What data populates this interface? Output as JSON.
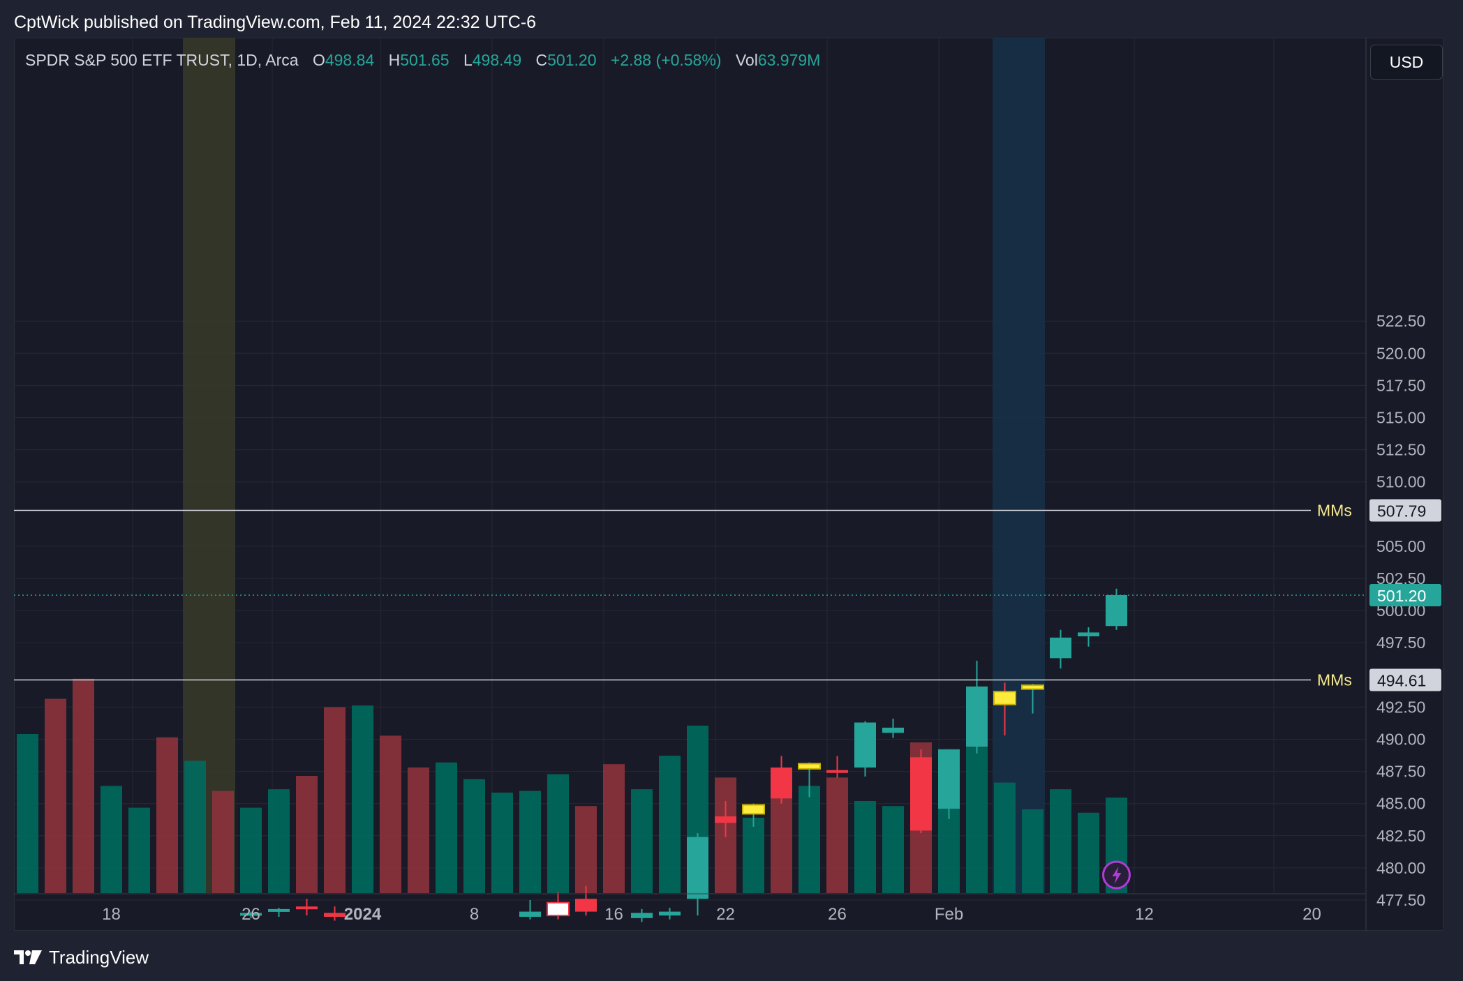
{
  "header": {
    "published_text": "CptWick published on TradingView.com, Feb 11, 2024 22:32 UTC-6"
  },
  "legend": {
    "symbol": "SPDR S&P 500 ETF TRUST, 1D, Arca",
    "open_label": "O",
    "open": "498.84",
    "high_label": "H",
    "high": "501.65",
    "low_label": "L",
    "low": "498.49",
    "close_label": "C",
    "close": "501.20",
    "change": "+2.88 (+0.58%)",
    "vol_label": "Vol",
    "volume": "63.979M"
  },
  "currency": "USD",
  "footer": {
    "brand": "TradingView"
  },
  "colors": {
    "up": "#26a69a",
    "down": "#f23645",
    "yellow": "#ffeb3b",
    "white_body": "#ffffff",
    "grid": "#262a36",
    "vol_up": "#00695c",
    "vol_down": "#8b323b",
    "highlight_olive": "#3a3a2a",
    "highlight_blue": "#16304a",
    "mm_line": "#d1d4dc",
    "mm_text": "#f7e98e"
  },
  "icons": {
    "lightning": "lightning-icon",
    "brand": "tradingview-logo-icon"
  },
  "chart_data": {
    "type": "candlestick",
    "y_axis_ticks": [
      "522.50",
      "520.00",
      "517.50",
      "515.00",
      "512.50",
      "510.00",
      "505.00",
      "502.50",
      "500.00",
      "497.50",
      "492.50",
      "490.00",
      "487.50",
      "485.00",
      "482.50",
      "480.00",
      "477.50"
    ],
    "x_axis_labels": [
      {
        "label": "18",
        "date": "2023-12-18",
        "bold": false
      },
      {
        "label": "26",
        "date": "2023-12-26",
        "bold": false
      },
      {
        "label": "2024",
        "date": "2024-01-02",
        "bold": true
      },
      {
        "label": "8",
        "date": "2024-01-08",
        "bold": false
      },
      {
        "label": "16",
        "date": "2024-01-16",
        "bold": false
      },
      {
        "label": "22",
        "date": "2024-01-22",
        "bold": false
      },
      {
        "label": "26",
        "date": "2024-01-26",
        "bold": false
      },
      {
        "label": "Feb",
        "date": "2024-02-01",
        "bold": false
      },
      {
        "label": "12",
        "date": "2024-02-12",
        "bold": false
      },
      {
        "label": "20",
        "date": "2024-02-20",
        "bold": false
      }
    ],
    "horizontal_lines": [
      {
        "name": "MMs",
        "value": 507.79,
        "label": "507.79"
      },
      {
        "name": "MMs",
        "value": 494.61,
        "label": "494.61"
      }
    ],
    "last_price": {
      "value": 501.2,
      "label": "501.20"
    },
    "highlight_bands": [
      {
        "from": "2023-12-21",
        "to": "2023-12-22",
        "color": "olive"
      },
      {
        "from": "2024-02-05",
        "to": "2024-02-06",
        "color": "blue"
      }
    ],
    "candles": [
      {
        "date": "2023-12-13",
        "o": null,
        "h": null,
        "l": null,
        "c": null,
        "vol": 95,
        "dir": "up"
      },
      {
        "date": "2023-12-14",
        "o": null,
        "h": null,
        "l": null,
        "c": null,
        "vol": 116,
        "dir": "down"
      },
      {
        "date": "2023-12-15",
        "o": null,
        "h": null,
        "l": null,
        "c": null,
        "vol": 128,
        "dir": "down"
      },
      {
        "date": "2023-12-18",
        "o": null,
        "h": null,
        "l": null,
        "c": null,
        "vol": 64,
        "dir": "up"
      },
      {
        "date": "2023-12-19",
        "o": null,
        "h": null,
        "l": null,
        "c": null,
        "vol": 51,
        "dir": "up"
      },
      {
        "date": "2023-12-20",
        "o": null,
        "h": null,
        "l": null,
        "c": null,
        "vol": 93,
        "dir": "down"
      },
      {
        "date": "2023-12-21",
        "o": null,
        "h": null,
        "l": null,
        "c": null,
        "vol": 79,
        "dir": "up"
      },
      {
        "date": "2023-12-22",
        "o": null,
        "h": null,
        "l": null,
        "c": null,
        "vol": 61,
        "dir": "down"
      },
      {
        "date": "2023-12-26",
        "o": 476.3,
        "h": 476.6,
        "l": 476.1,
        "c": 476.5,
        "vol": 51,
        "dir": "up"
      },
      {
        "date": "2023-12-27",
        "o": 476.6,
        "h": 476.9,
        "l": 476.2,
        "c": 476.8,
        "vol": 62,
        "dir": "up"
      },
      {
        "date": "2023-12-28",
        "o": 477.0,
        "h": 477.6,
        "l": 476.3,
        "c": 476.8,
        "vol": 70,
        "dir": "down"
      },
      {
        "date": "2023-12-29",
        "o": 476.5,
        "h": 477.0,
        "l": 475.9,
        "c": 476.2,
        "vol": 111,
        "dir": "down"
      },
      {
        "date": "2024-01-02",
        "o": null,
        "h": null,
        "l": null,
        "c": null,
        "vol": 112,
        "dir": "up"
      },
      {
        "date": "2024-01-03",
        "o": null,
        "h": null,
        "l": null,
        "c": null,
        "vol": 94,
        "dir": "down"
      },
      {
        "date": "2024-01-04",
        "o": null,
        "h": null,
        "l": null,
        "c": null,
        "vol": 75,
        "dir": "down"
      },
      {
        "date": "2024-01-05",
        "o": null,
        "h": null,
        "l": null,
        "c": null,
        "vol": 78,
        "dir": "up"
      },
      {
        "date": "2024-01-08",
        "o": null,
        "h": null,
        "l": null,
        "c": null,
        "vol": 68,
        "dir": "up"
      },
      {
        "date": "2024-01-09",
        "o": null,
        "h": null,
        "l": null,
        "c": null,
        "vol": 60,
        "dir": "up"
      },
      {
        "date": "2024-01-10",
        "o": 476.2,
        "h": 477.5,
        "l": 476.0,
        "c": 476.6,
        "vol": 61,
        "dir": "up"
      },
      {
        "date": "2024-01-11",
        "o": 476.3,
        "h": 478.1,
        "l": 476.0,
        "c": 477.3,
        "vol": 71,
        "dir": "white"
      },
      {
        "date": "2024-01-12",
        "o": 477.6,
        "h": 478.6,
        "l": 476.3,
        "c": 476.6,
        "vol": 52,
        "dir": "down"
      },
      {
        "date": "2024-01-16",
        "o": null,
        "h": null,
        "l": null,
        "c": null,
        "vol": 77,
        "dir": "down"
      },
      {
        "date": "2024-01-17",
        "o": 476.1,
        "h": 476.8,
        "l": 475.8,
        "c": 476.5,
        "vol": 62,
        "dir": "up"
      },
      {
        "date": "2024-01-18",
        "o": 476.3,
        "h": 476.9,
        "l": 476.0,
        "c": 476.6,
        "vol": 82,
        "dir": "up"
      },
      {
        "date": "2024-01-19",
        "o": 477.6,
        "h": 482.7,
        "l": 476.3,
        "c": 482.4,
        "vol": 100,
        "dir": "up"
      },
      {
        "date": "2024-01-22",
        "o": 484.0,
        "h": 485.2,
        "l": 482.4,
        "c": 483.5,
        "vol": 69,
        "dir": "down"
      },
      {
        "date": "2024-01-23",
        "o": 484.2,
        "h": 485.0,
        "l": 483.2,
        "c": 484.9,
        "vol": 45,
        "dir": "yellow"
      },
      {
        "date": "2024-01-24",
        "o": 487.8,
        "h": 488.7,
        "l": 485.0,
        "c": 485.4,
        "vol": 58,
        "dir": "down"
      },
      {
        "date": "2024-01-25",
        "o": 487.7,
        "h": 488.2,
        "l": 485.5,
        "c": 488.1,
        "vol": 64,
        "dir": "yellow"
      },
      {
        "date": "2024-01-26",
        "o": 487.6,
        "h": 488.7,
        "l": 487.0,
        "c": 487.4,
        "vol": 69,
        "dir": "down"
      },
      {
        "date": "2024-01-29",
        "o": 487.8,
        "h": 491.4,
        "l": 487.1,
        "c": 491.3,
        "vol": 55,
        "dir": "up"
      },
      {
        "date": "2024-01-30",
        "o": 490.5,
        "h": 491.6,
        "l": 490.1,
        "c": 490.9,
        "vol": 52,
        "dir": "up"
      },
      {
        "date": "2024-01-31",
        "o": 488.6,
        "h": 489.2,
        "l": 482.7,
        "c": 482.9,
        "vol": 90,
        "dir": "down"
      },
      {
        "date": "2024-02-01",
        "o": 484.6,
        "h": 489.2,
        "l": 483.8,
        "c": 489.2,
        "vol": 86,
        "dir": "up"
      },
      {
        "date": "2024-02-02",
        "o": 489.4,
        "h": 496.1,
        "l": 488.9,
        "c": 494.1,
        "vol": 87,
        "dir": "up"
      },
      {
        "date": "2024-02-05",
        "o": 493.7,
        "h": 494.4,
        "l": 490.3,
        "c": 492.7,
        "vol": 66,
        "dir": "yellow"
      },
      {
        "date": "2024-02-06",
        "o": 493.9,
        "h": 494.3,
        "l": 492.0,
        "c": 494.2,
        "vol": 50,
        "dir": "yellow"
      },
      {
        "date": "2024-02-07",
        "o": 496.3,
        "h": 498.5,
        "l": 495.5,
        "c": 497.9,
        "vol": 62,
        "dir": "up"
      },
      {
        "date": "2024-02-08",
        "o": 498.0,
        "h": 498.7,
        "l": 497.2,
        "c": 498.3,
        "vol": 48,
        "dir": "up"
      },
      {
        "date": "2024-02-09",
        "o": 498.8,
        "h": 501.7,
        "l": 498.5,
        "c": 501.2,
        "vol": 57,
        "dir": "up"
      }
    ]
  }
}
